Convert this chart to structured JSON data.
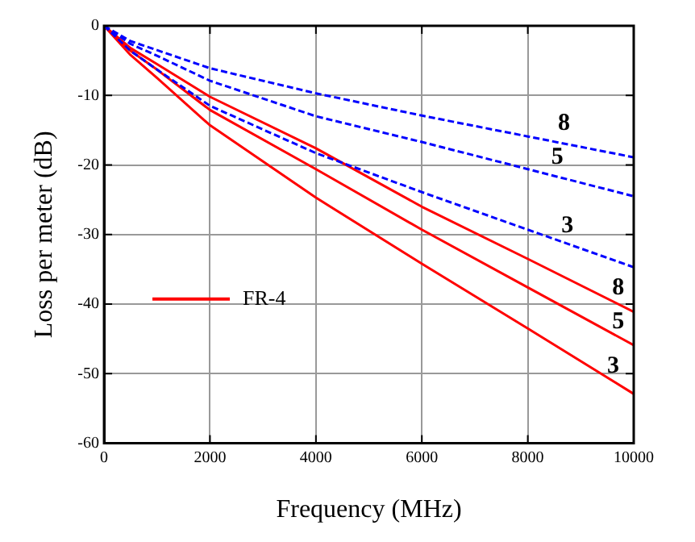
{
  "chart_data": {
    "type": "line",
    "xlabel": "Frequency (MHz)",
    "ylabel": "Loss per meter (dB)",
    "x": [
      0,
      500,
      1000,
      2000,
      4000,
      6000,
      8000,
      10000
    ],
    "series": [
      {
        "color": "#0000ff",
        "line_style": "dashed",
        "values": [
          0,
          -2.2,
          -3.5,
          -6.1,
          -9.7,
          -12.9,
          -15.9,
          -18.9
        ]
      },
      {
        "color": "#0000ff",
        "line_style": "dashed",
        "values": [
          0,
          -2.6,
          -4.3,
          -7.9,
          -13,
          -16.7,
          -20.6,
          -24.5
        ]
      },
      {
        "color": "#0000ff",
        "line_style": "dashed",
        "values": [
          0,
          -3.6,
          -6.3,
          -11.5,
          -18.3,
          -23.9,
          -29.3,
          -34.7
        ]
      },
      {
        "name": "FR-4",
        "color": "#ff0000",
        "line_style": "solid",
        "values": [
          0,
          -3.2,
          -5.5,
          -10.2,
          -17.6,
          -26,
          -33.5,
          -41.1
        ]
      },
      {
        "color": "#ff0000",
        "line_style": "solid",
        "values": [
          0,
          -3.6,
          -6.3,
          -12.1,
          -20.6,
          -29.3,
          -37.6,
          -45.9
        ]
      },
      {
        "color": "#ff0000",
        "line_style": "solid",
        "values": [
          0,
          -4.2,
          -7.5,
          -14.3,
          -24.7,
          -34.2,
          -43.5,
          -52.9
        ]
      }
    ],
    "xlim": [
      0,
      10000
    ],
    "xticks": [
      0,
      2000,
      4000,
      6000,
      8000,
      10000
    ],
    "ylim": [
      -60,
      0
    ],
    "yticks": [
      -60,
      -50,
      -40,
      -30,
      -20,
      -10,
      0
    ],
    "grid": true,
    "legend": "center left",
    "marker": "none",
    "annotations": [
      {
        "text": "8",
        "x": 8928,
        "y": -17.3
      },
      {
        "text": "5",
        "x": 8800,
        "y": -22.2
      },
      {
        "text": "3",
        "x": 8992,
        "y": -32
      },
      {
        "text": "8",
        "x": 9952,
        "y": -41
      },
      {
        "text": "5",
        "x": 9952,
        "y": -45.8
      },
      {
        "text": "3",
        "x": 9856,
        "y": -52.2
      }
    ]
  }
}
